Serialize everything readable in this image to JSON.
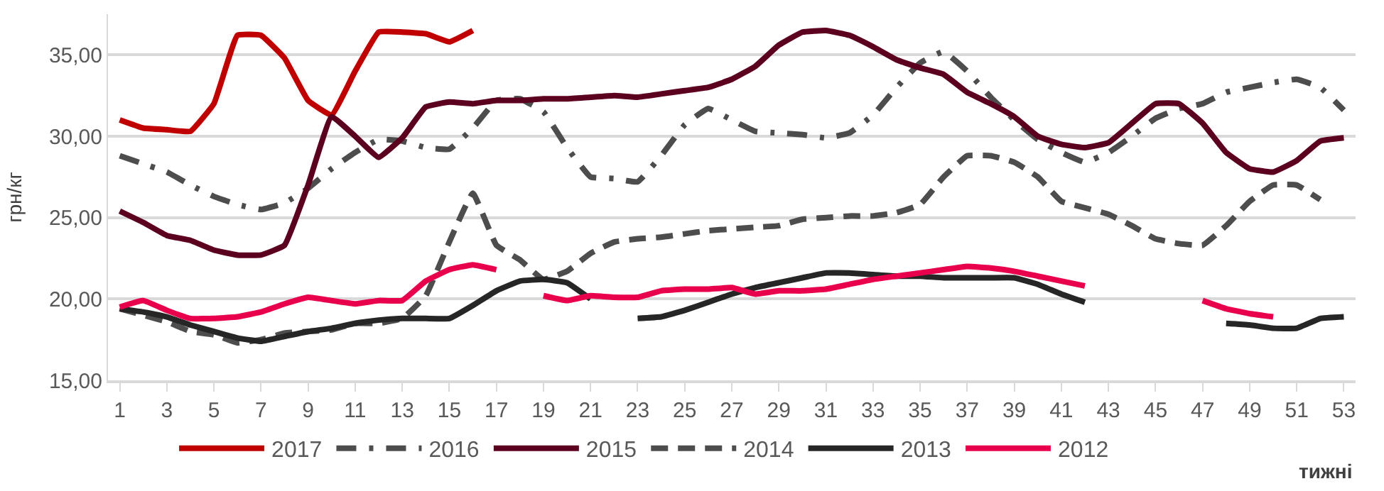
{
  "chart_data": {
    "type": "line",
    "xlabel": "тижні",
    "ylabel": "грн/кг",
    "x": [
      1,
      2,
      3,
      4,
      5,
      6,
      7,
      8,
      9,
      10,
      11,
      12,
      13,
      14,
      15,
      16,
      17,
      18,
      19,
      20,
      21,
      22,
      23,
      24,
      25,
      26,
      27,
      28,
      29,
      30,
      31,
      32,
      33,
      34,
      35,
      36,
      37,
      38,
      39,
      40,
      41,
      42,
      43,
      44,
      45,
      46,
      47,
      48,
      49,
      50,
      51,
      52,
      53
    ],
    "xlim": [
      0.5,
      53.5
    ],
    "xticks": [
      1,
      3,
      5,
      7,
      9,
      11,
      13,
      15,
      17,
      19,
      21,
      23,
      25,
      27,
      29,
      31,
      33,
      35,
      37,
      39,
      41,
      43,
      45,
      47,
      49,
      51,
      53
    ],
    "ylim": [
      15,
      37.5
    ],
    "yticks": [
      {
        "value": 15,
        "label": "15,00"
      },
      {
        "value": 20,
        "label": "20,00"
      },
      {
        "value": 25,
        "label": "25,00"
      },
      {
        "value": 30,
        "label": "30,00"
      },
      {
        "value": 35,
        "label": "35,00"
      }
    ],
    "grid": "y",
    "legend": "bottom",
    "marker": "none",
    "series": [
      {
        "name": "2017",
        "color": "#c00000",
        "line_style": "solid",
        "values": [
          31.0,
          30.5,
          30.4,
          30.3,
          32.0,
          36.2,
          36.2,
          34.8,
          32.2,
          31.3,
          34.0,
          36.4,
          36.4,
          36.3,
          35.8,
          36.5,
          null,
          null,
          null,
          null,
          null,
          null,
          null,
          null,
          null,
          null,
          null,
          null,
          null,
          null,
          null,
          null,
          null,
          null,
          null,
          null,
          null,
          null,
          null,
          null,
          null,
          null,
          null,
          null,
          null,
          null,
          null,
          null,
          null,
          null,
          null,
          null,
          null
        ]
      },
      {
        "name": "2016",
        "color": "#4d4d4d",
        "line_style": "dashdot",
        "values": [
          28.8,
          28.3,
          27.8,
          27.0,
          26.3,
          25.8,
          25.5,
          25.9,
          26.8,
          28.0,
          29.0,
          29.8,
          29.7,
          29.3,
          29.2,
          30.5,
          32.2,
          32.3,
          31.5,
          29.3,
          27.5,
          27.4,
          27.2,
          28.8,
          30.7,
          31.7,
          31.0,
          30.3,
          30.2,
          30.1,
          29.9,
          30.2,
          31.3,
          33.0,
          34.5,
          35.2,
          34.0,
          32.4,
          31.0,
          29.8,
          29.0,
          28.4,
          29.0,
          30.0,
          31.1,
          31.7,
          32.0,
          32.7,
          33.0,
          33.3,
          33.5,
          33.0,
          31.6
        ]
      },
      {
        "name": "2015",
        "color": "#5c0020",
        "line_style": "solid",
        "values": [
          25.4,
          24.7,
          23.9,
          23.6,
          23.0,
          22.7,
          22.7,
          23.3,
          27.0,
          31.2,
          30.0,
          28.7,
          29.9,
          31.8,
          32.1,
          32.0,
          32.2,
          32.2,
          32.3,
          32.3,
          32.4,
          32.5,
          32.4,
          32.6,
          32.8,
          33.0,
          33.5,
          34.3,
          35.6,
          36.4,
          36.5,
          36.2,
          35.5,
          34.7,
          34.2,
          33.8,
          32.7,
          32.0,
          31.2,
          30.0,
          29.5,
          29.3,
          29.6,
          30.8,
          32.0,
          32.0,
          30.8,
          29.0,
          28.0,
          27.8,
          28.5,
          29.7,
          29.9
        ]
      },
      {
        "name": "2014",
        "color": "#4d4d4d",
        "line_style": "dashed",
        "values": [
          19.4,
          19.0,
          18.6,
          18.0,
          17.8,
          17.3,
          17.5,
          17.9,
          18.0,
          18.1,
          18.5,
          18.5,
          18.8,
          20.2,
          23.5,
          26.5,
          23.3,
          22.4,
          21.2,
          21.7,
          22.8,
          23.5,
          23.7,
          23.8,
          24.0,
          24.2,
          24.3,
          24.4,
          24.5,
          24.9,
          25.0,
          25.1,
          25.1,
          25.3,
          25.8,
          27.5,
          28.8,
          28.8,
          28.4,
          27.5,
          26.0,
          25.6,
          25.2,
          24.5,
          23.7,
          23.4,
          23.3,
          24.5,
          26.0,
          27.0,
          27.0,
          26.1,
          null
        ]
      },
      {
        "name": "2013",
        "color": "#262626",
        "line_style": "solid",
        "values": [
          19.4,
          19.2,
          18.9,
          18.4,
          18.0,
          17.6,
          17.4,
          17.7,
          18.0,
          18.2,
          18.5,
          18.7,
          18.8,
          18.8,
          18.8,
          19.6,
          20.5,
          21.1,
          21.2,
          21.0,
          20.0,
          null,
          18.8,
          18.9,
          19.3,
          19.8,
          20.3,
          20.7,
          21.0,
          21.3,
          21.6,
          21.6,
          21.5,
          21.4,
          21.4,
          21.3,
          21.3,
          21.3,
          21.3,
          20.9,
          20.3,
          19.8,
          null,
          null,
          null,
          null,
          null,
          18.5,
          18.4,
          18.2,
          18.2,
          18.8,
          18.9
        ]
      },
      {
        "name": "2012",
        "color": "#e8004c",
        "line_style": "solid",
        "values": [
          19.5,
          19.9,
          19.3,
          18.8,
          18.8,
          18.9,
          19.2,
          19.7,
          20.1,
          19.9,
          19.7,
          19.9,
          19.9,
          21.1,
          21.8,
          22.1,
          21.8,
          null,
          20.2,
          19.9,
          20.2,
          20.1,
          20.1,
          20.5,
          20.6,
          20.6,
          20.7,
          20.3,
          20.5,
          20.5,
          20.6,
          20.9,
          21.2,
          21.4,
          21.6,
          21.8,
          22.0,
          21.9,
          21.7,
          21.4,
          21.1,
          20.8,
          null,
          null,
          null,
          null,
          19.9,
          19.4,
          19.1,
          18.9,
          null,
          null,
          null
        ]
      }
    ]
  }
}
